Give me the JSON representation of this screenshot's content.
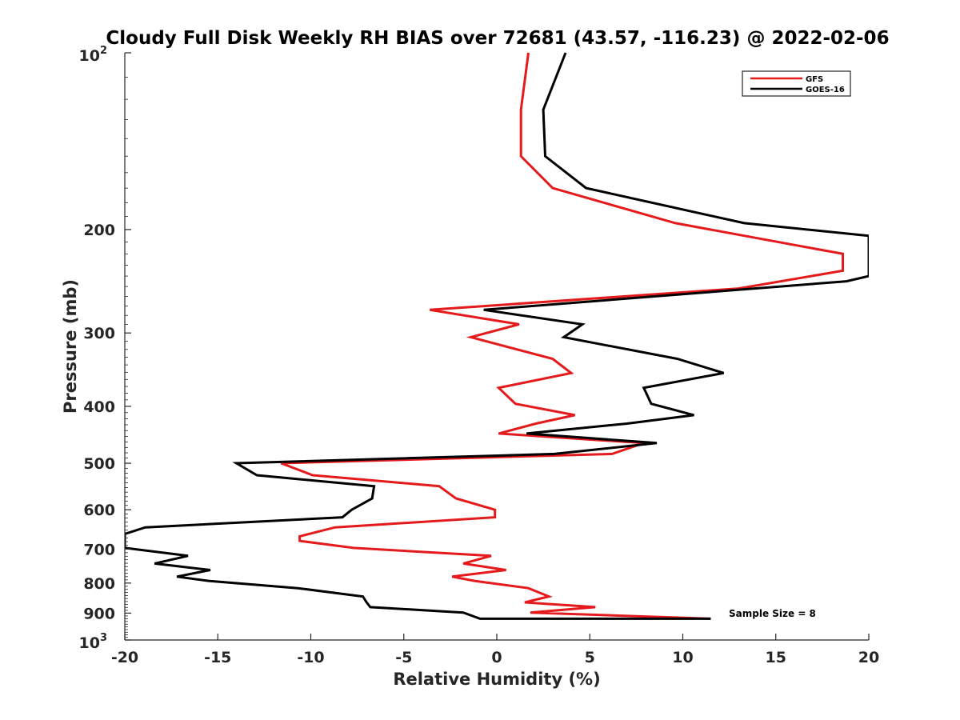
{
  "chart_data": {
    "type": "line",
    "title": "Cloudy Full Disk Weekly RH BIAS over 72681 (43.57, -116.23) @ 2022-02-06",
    "xlabel": "Relative Humidity (%)",
    "ylabel": "Pressure (mb)",
    "xlim": [
      -20,
      20
    ],
    "ylim": [
      100,
      1000
    ],
    "yscale": "log",
    "y_reversed": true,
    "x_ticks": [
      "-20",
      "-15",
      "-10",
      "-5",
      "0",
      "5",
      "10",
      "15",
      "20"
    ],
    "y_ticks": [
      {
        "value": 100,
        "base": "10",
        "exp": "2"
      },
      {
        "value": 200,
        "label": "200"
      },
      {
        "value": 300,
        "label": "300"
      },
      {
        "value": 400,
        "label": "400"
      },
      {
        "value": 500,
        "label": "500"
      },
      {
        "value": 600,
        "label": "600"
      },
      {
        "value": 700,
        "label": "700"
      },
      {
        "value": 800,
        "label": "800"
      },
      {
        "value": 900,
        "label": "900"
      },
      {
        "value": 1000,
        "base": "10",
        "exp": "3"
      }
    ],
    "grid": false,
    "legend_position": "top-right",
    "annotation": "Sample Size = 8",
    "series": [
      {
        "name": "GFS",
        "color": "#e41a1c",
        "points": [
          [
            1.7,
            100
          ],
          [
            1.3,
            125
          ],
          [
            1.3,
            150
          ],
          [
            3.0,
            170
          ],
          [
            9.6,
            195
          ],
          [
            18.6,
            220
          ],
          [
            18.6,
            235
          ],
          [
            13.0,
            252
          ],
          [
            -3.6,
            274
          ],
          [
            1.2,
            290
          ],
          [
            -1.4,
            305
          ],
          [
            3.0,
            332
          ],
          [
            4.0,
            351
          ],
          [
            0.1,
            372
          ],
          [
            1.0,
            396
          ],
          [
            4.2,
            414
          ],
          [
            2.1,
            428
          ],
          [
            0.1,
            445
          ],
          [
            7.9,
            462
          ],
          [
            6.2,
            482
          ],
          [
            -11.6,
            500
          ],
          [
            -9.9,
            524
          ],
          [
            -3.1,
            547
          ],
          [
            -2.2,
            574
          ],
          [
            -0.1,
            600
          ],
          [
            -0.1,
            618
          ],
          [
            -8.7,
            643
          ],
          [
            -10.6,
            666
          ],
          [
            -10.6,
            678
          ],
          [
            -7.7,
            697
          ],
          [
            -0.3,
            719
          ],
          [
            -1.8,
            741
          ],
          [
            0.5,
            760
          ],
          [
            -2.4,
            780
          ],
          [
            -1.2,
            793
          ],
          [
            1.7,
            816
          ],
          [
            2.8,
            843
          ],
          [
            1.5,
            863
          ],
          [
            5.3,
            879
          ],
          [
            1.8,
            898
          ],
          [
            11.5,
            920
          ]
        ]
      },
      {
        "name": "GOES-16",
        "color": "#000000",
        "points": [
          [
            3.7,
            100
          ],
          [
            2.5,
            125
          ],
          [
            2.6,
            150
          ],
          [
            4.8,
            170
          ],
          [
            13.3,
            195
          ],
          [
            20.0,
            205
          ],
          [
            20.0,
            240
          ],
          [
            18.8,
            245
          ],
          [
            -0.7,
            274
          ],
          [
            4.6,
            290
          ],
          [
            3.6,
            305
          ],
          [
            9.7,
            332
          ],
          [
            12.2,
            351
          ],
          [
            7.9,
            372
          ],
          [
            8.3,
            396
          ],
          [
            10.6,
            414
          ],
          [
            7.0,
            428
          ],
          [
            1.6,
            445
          ],
          [
            8.6,
            462
          ],
          [
            3.1,
            482
          ],
          [
            -14.0,
            500
          ],
          [
            -12.9,
            524
          ],
          [
            -6.6,
            547
          ],
          [
            -6.7,
            574
          ],
          [
            -7.8,
            600
          ],
          [
            -8.3,
            618
          ],
          [
            -18.9,
            643
          ],
          [
            -20.0,
            660
          ],
          [
            -20.0,
            697
          ],
          [
            -16.6,
            719
          ],
          [
            -18.4,
            741
          ],
          [
            -15.4,
            760
          ],
          [
            -17.2,
            780
          ],
          [
            -15.5,
            793
          ],
          [
            -10.7,
            816
          ],
          [
            -7.2,
            843
          ],
          [
            -7.0,
            863
          ],
          [
            -6.8,
            879
          ],
          [
            -1.8,
            898
          ],
          [
            -0.9,
            920
          ],
          [
            11.5,
            920
          ]
        ]
      }
    ]
  }
}
